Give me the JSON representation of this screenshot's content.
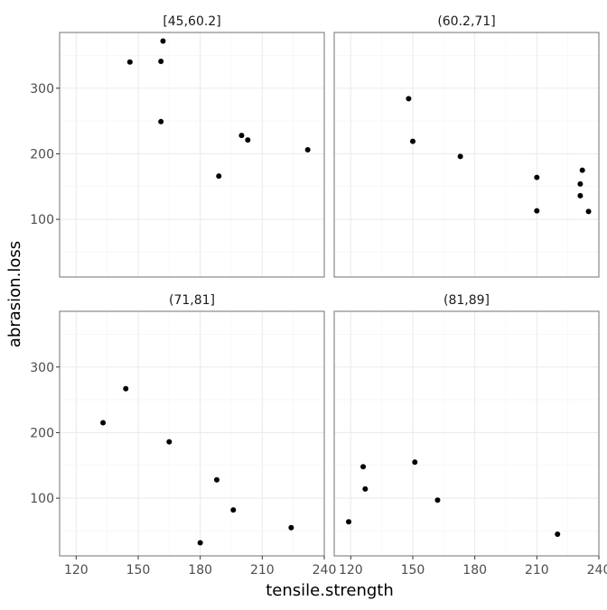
{
  "chart_data": {
    "type": "scatter",
    "xlabel": "tensile.strength",
    "ylabel": "abrasion.loss",
    "xlim": [
      112,
      240
    ],
    "ylim": [
      12,
      385
    ],
    "x_ticks": [
      120,
      150,
      180,
      210,
      240
    ],
    "y_ticks": [
      100,
      200,
      300
    ],
    "grid": true,
    "point_color": "#000000",
    "grid_major_color": "#ebebeb",
    "grid_minor_color": "#f5f5f5",
    "panel_border_color": "#7f7f7f",
    "panels": [
      {
        "title": "[45,60.2]",
        "points": [
          {
            "x": 162,
            "y": 372
          },
          {
            "x": 146,
            "y": 340
          },
          {
            "x": 161,
            "y": 341
          },
          {
            "x": 161,
            "y": 249
          },
          {
            "x": 200,
            "y": 228
          },
          {
            "x": 203,
            "y": 221
          },
          {
            "x": 232,
            "y": 206
          },
          {
            "x": 189,
            "y": 166
          }
        ]
      },
      {
        "title": "(60.2,71]",
        "points": [
          {
            "x": 148,
            "y": 284
          },
          {
            "x": 150,
            "y": 219
          },
          {
            "x": 173,
            "y": 196
          },
          {
            "x": 210,
            "y": 164
          },
          {
            "x": 210,
            "y": 113
          },
          {
            "x": 232,
            "y": 175
          },
          {
            "x": 231,
            "y": 154
          },
          {
            "x": 231,
            "y": 136
          },
          {
            "x": 235,
            "y": 112
          }
        ]
      },
      {
        "title": "(71,81]",
        "points": [
          {
            "x": 144,
            "y": 267
          },
          {
            "x": 133,
            "y": 215
          },
          {
            "x": 165,
            "y": 186
          },
          {
            "x": 188,
            "y": 128
          },
          {
            "x": 196,
            "y": 82
          },
          {
            "x": 224,
            "y": 55
          },
          {
            "x": 180,
            "y": 32
          }
        ]
      },
      {
        "title": "(81,89]",
        "points": [
          {
            "x": 126,
            "y": 148
          },
          {
            "x": 127,
            "y": 114
          },
          {
            "x": 151,
            "y": 155
          },
          {
            "x": 162,
            "y": 97
          },
          {
            "x": 119,
            "y": 64
          },
          {
            "x": 220,
            "y": 45
          }
        ]
      }
    ]
  }
}
